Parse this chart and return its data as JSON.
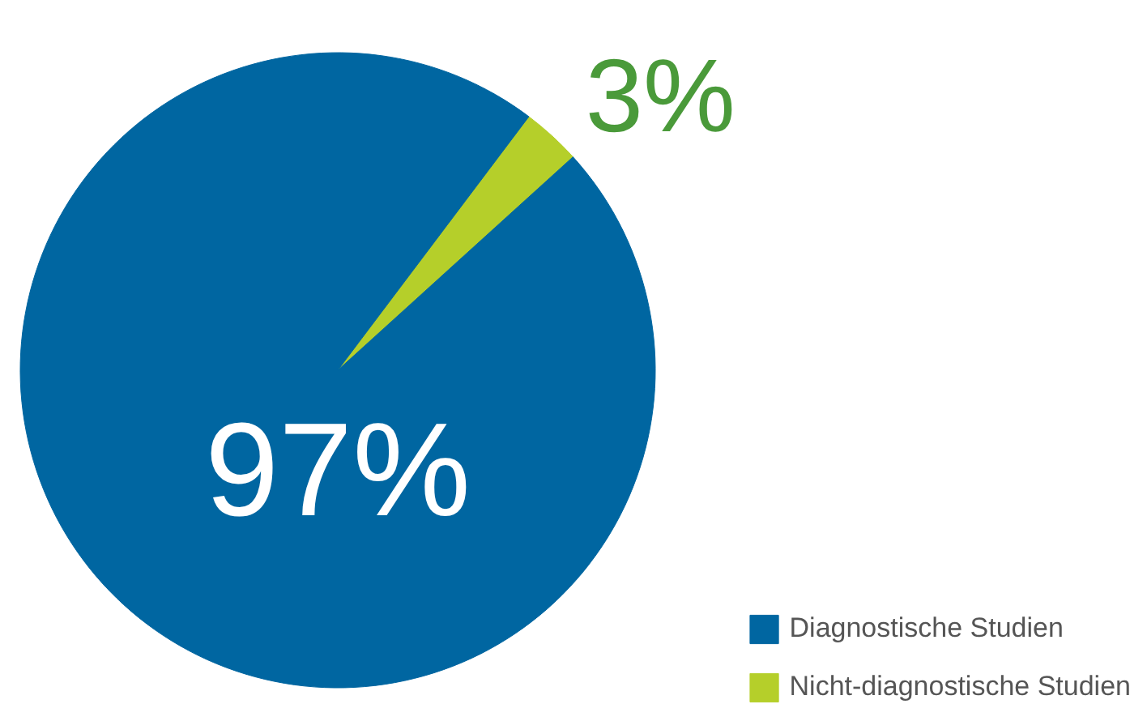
{
  "chart_data": {
    "type": "pie",
    "categories": [
      "Diagnostische Studien",
      "Nicht-diagnostische Studien"
    ],
    "values": [
      97,
      3
    ],
    "colors": [
      "#0066a1",
      "#b5cf2a"
    ],
    "value_labels": [
      "97%",
      "3%"
    ],
    "legend": "bottom right"
  }
}
